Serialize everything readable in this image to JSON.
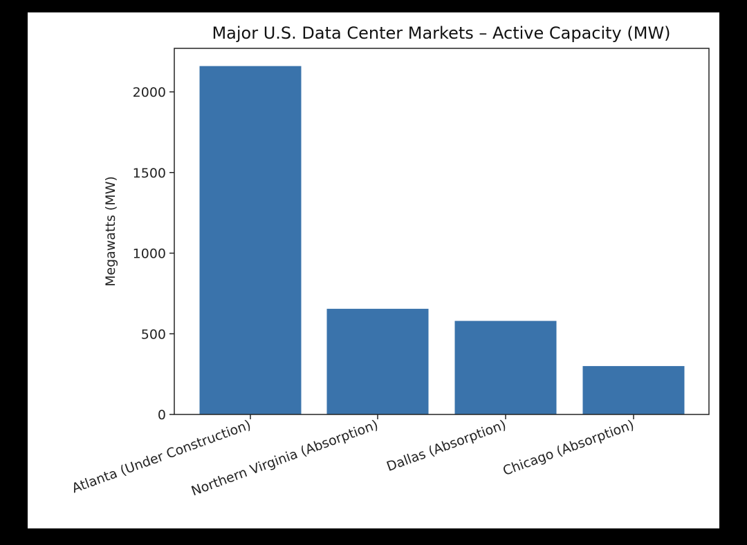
{
  "chart_data": {
    "type": "bar",
    "title": "Major U.S. Data Center Markets – Active Capacity (MW)",
    "xlabel": "",
    "ylabel": "Megawatts (MW)",
    "categories": [
      "Atlanta (Under Construction)",
      "Northern Virginia (Absorption)",
      "Dallas (Absorption)",
      "Chicago (Absorption)"
    ],
    "values": [
      2160,
      655,
      580,
      300
    ],
    "ylim": [
      0,
      2270
    ],
    "yticks": [
      0,
      500,
      1000,
      1500,
      2000
    ],
    "ytick_labels": [
      "0",
      "500",
      "1000",
      "1500",
      "2000"
    ],
    "bar_color": "#3a73ab",
    "grid": false,
    "legend": null,
    "xtick_rotation": -20
  }
}
